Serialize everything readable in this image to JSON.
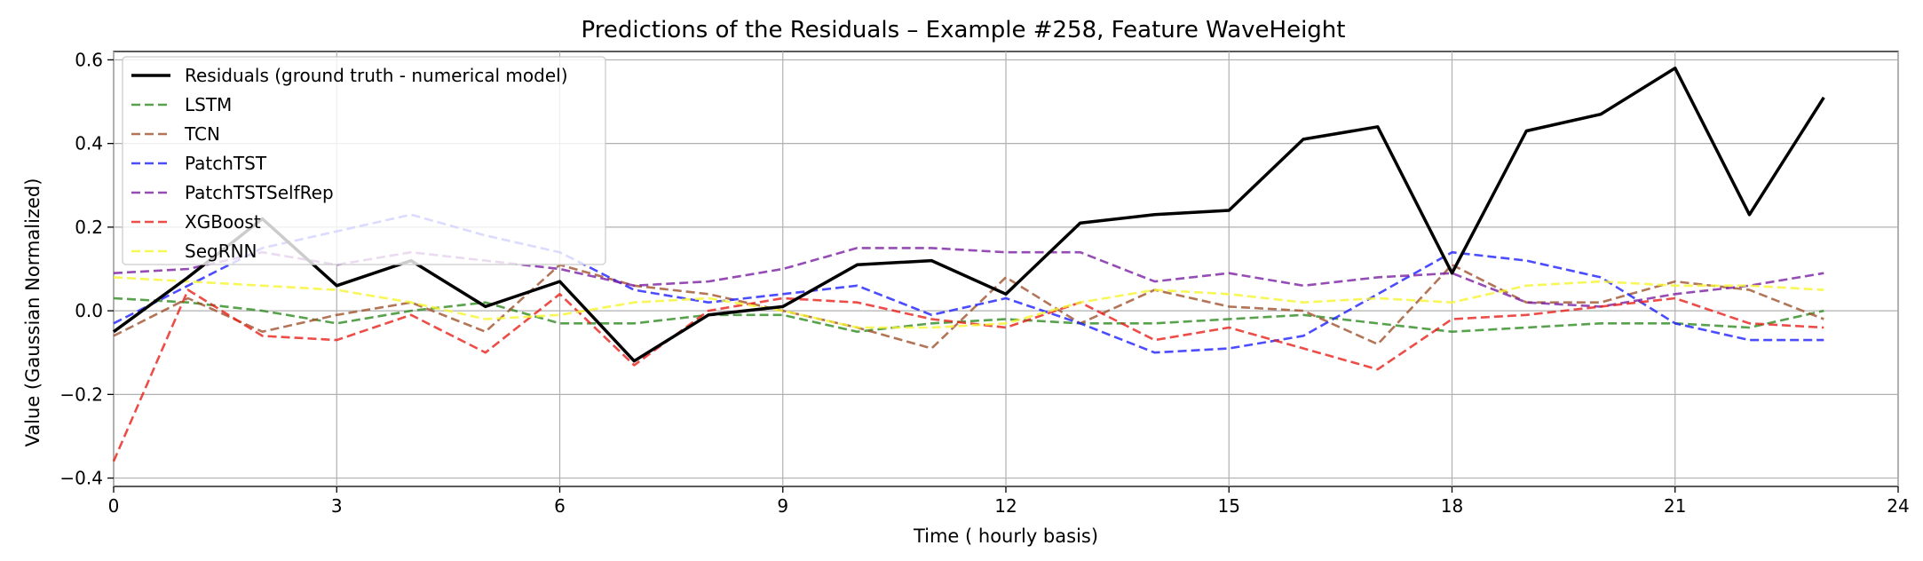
{
  "chart_data": {
    "type": "line",
    "title": "Predictions of the Residuals – Example #258, Feature WaveHeight",
    "xlabel": "Time ( hourly basis)",
    "ylabel": "Value (Gaussian Normalized)",
    "xlim": [
      0,
      24
    ],
    "ylim": [
      -0.42,
      0.62
    ],
    "xticks": [
      0,
      3,
      6,
      9,
      12,
      15,
      18,
      21,
      24
    ],
    "yticks": [
      -0.4,
      -0.2,
      0.0,
      0.2,
      0.4,
      0.6
    ],
    "xtick_labels": [
      "0",
      "3",
      "6",
      "9",
      "12",
      "15",
      "18",
      "21",
      "24"
    ],
    "ytick_labels": [
      "−0.4",
      "−0.2",
      "0.0",
      "0.2",
      "0.4",
      "0.6"
    ],
    "grid": true,
    "legend_position": "upper-left",
    "x": [
      0,
      1,
      2,
      3,
      4,
      5,
      6,
      7,
      8,
      9,
      10,
      11,
      12,
      13,
      14,
      15,
      16,
      17,
      18,
      19,
      20,
      21,
      22,
      23
    ],
    "series": [
      {
        "name": "Residuals (ground truth - numerical model)",
        "color": "#000000",
        "style": "solid",
        "values": [
          -0.05,
          0.08,
          0.22,
          0.06,
          0.12,
          0.01,
          0.07,
          -0.12,
          -0.01,
          0.01,
          0.11,
          0.12,
          0.04,
          0.21,
          0.23,
          0.24,
          0.41,
          0.44,
          0.09,
          0.43,
          0.47,
          0.58,
          0.23,
          0.51
        ]
      },
      {
        "name": "LSTM",
        "color": "#2e8b22",
        "style": "dashed",
        "values": [
          0.03,
          0.02,
          0.0,
          -0.03,
          0.0,
          0.02,
          -0.03,
          -0.03,
          -0.01,
          -0.01,
          -0.05,
          -0.03,
          -0.02,
          -0.03,
          -0.03,
          -0.02,
          -0.01,
          -0.03,
          -0.05,
          -0.04,
          -0.03,
          -0.03,
          -0.04,
          0.0
        ]
      },
      {
        "name": "TCN",
        "color": "#a0522d",
        "style": "dashed",
        "values": [
          -0.06,
          0.03,
          -0.05,
          -0.01,
          0.02,
          -0.05,
          0.11,
          0.06,
          0.04,
          0.0,
          -0.04,
          -0.09,
          0.08,
          -0.03,
          0.05,
          0.01,
          0.0,
          -0.08,
          0.11,
          0.02,
          0.02,
          0.07,
          0.05,
          -0.02
        ]
      },
      {
        "name": "PatchTST",
        "color": "#1f1fff",
        "style": "dashed",
        "values": [
          -0.03,
          0.06,
          0.15,
          0.19,
          0.23,
          0.18,
          0.14,
          0.05,
          0.02,
          0.04,
          0.06,
          -0.01,
          0.03,
          -0.03,
          -0.1,
          -0.09,
          -0.06,
          0.04,
          0.14,
          0.12,
          0.08,
          -0.03,
          -0.07,
          -0.07
        ]
      },
      {
        "name": "PatchTSTSelfRep",
        "color": "#7b1fa2",
        "style": "dashed",
        "values": [
          0.09,
          0.1,
          0.14,
          0.11,
          0.14,
          0.12,
          0.1,
          0.06,
          0.07,
          0.1,
          0.15,
          0.15,
          0.14,
          0.14,
          0.07,
          0.09,
          0.06,
          0.08,
          0.09,
          0.02,
          0.01,
          0.04,
          0.06,
          0.09
        ]
      },
      {
        "name": "XGBoost",
        "color": "#e8201a",
        "style": "dashed",
        "values": [
          -0.36,
          0.05,
          -0.06,
          -0.07,
          -0.01,
          -0.1,
          0.04,
          -0.13,
          0.0,
          0.03,
          0.02,
          -0.02,
          -0.04,
          0.02,
          -0.07,
          -0.04,
          -0.09,
          -0.14,
          -0.02,
          -0.01,
          0.01,
          0.03,
          -0.03,
          -0.04
        ]
      },
      {
        "name": "SegRNN",
        "color": "#f5f530",
        "style": "dashed",
        "values": [
          0.08,
          0.07,
          0.06,
          0.05,
          0.02,
          -0.02,
          -0.01,
          0.02,
          0.03,
          0.0,
          -0.04,
          -0.04,
          -0.03,
          0.02,
          0.05,
          0.04,
          0.02,
          0.03,
          0.02,
          0.06,
          0.07,
          0.06,
          0.06,
          0.05
        ]
      }
    ]
  }
}
